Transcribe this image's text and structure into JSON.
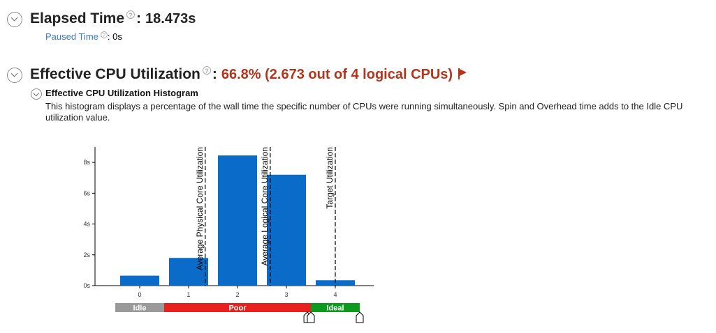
{
  "elapsed": {
    "label": "Elapsed Time",
    "help": "?",
    "colon": ":",
    "value": "18.473s",
    "paused_label": "Paused Time",
    "paused_help": "?",
    "paused_colon": ":",
    "paused_value": "0s"
  },
  "cpu": {
    "label": "Effective CPU Utilization",
    "help": "?",
    "colon": ":",
    "value": "66.8% (2.673 out of 4 logical CPUs)",
    "value_color": "#b5351c",
    "flag_icon": "flag-icon"
  },
  "histogram_section": {
    "title": "Effective CPU Utilization Histogram",
    "description": "This histogram displays a percentage of the wall time the specific number of CPUs were running simultaneously. Spin and Overhead time adds to the Idle CPU utilization value."
  },
  "chart_data": {
    "type": "bar",
    "categories": [
      "0",
      "1",
      "2",
      "3",
      "4"
    ],
    "values": [
      0.65,
      1.8,
      8.45,
      7.2,
      0.35
    ],
    "ylim": [
      0,
      9
    ],
    "yticks": [
      0,
      2,
      4,
      6,
      8
    ],
    "ytick_labels": [
      "0s",
      "2s",
      "4s",
      "6s",
      "8s"
    ],
    "bar_color": "#0a6cc8",
    "reference_lines": [
      {
        "label": "Average Physical Core Utilization",
        "x": 1.34
      },
      {
        "label": "Average Logical Core Utilization",
        "x": 2.67
      },
      {
        "label": "Target Utilization",
        "x": 4.0
      }
    ],
    "bands": [
      {
        "label": "Idle",
        "from": -0.5,
        "to": 0.5,
        "color": "#9a9a9a"
      },
      {
        "label": "Poor",
        "from": 0.5,
        "to": 3.5,
        "color": "#e8201e"
      },
      {
        "label": "Ideal",
        "from": 3.5,
        "to": 4.5,
        "color": "#0e9a1f"
      }
    ],
    "markers": [
      3.43,
      3.5,
      4.5
    ]
  }
}
